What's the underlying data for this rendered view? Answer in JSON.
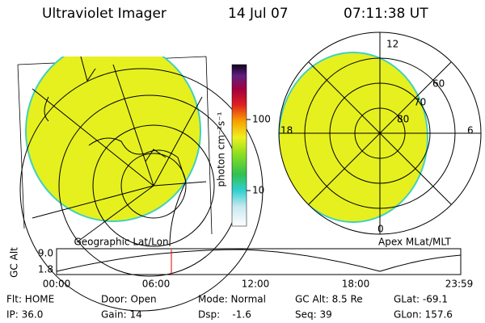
{
  "header": {
    "title": "Ultraviolet Imager",
    "date": "14 Jul 07",
    "time": "07:11:38 UT"
  },
  "colorbar": {
    "label": "photon cm⁻²s⁻¹",
    "ticks": [
      "100",
      "10"
    ]
  },
  "left_panel": {
    "label": "Geographic Lat/Lon"
  },
  "right_panel": {
    "label": "Apex MLat/MLT",
    "mlt_labels": [
      "12",
      "18",
      "6",
      "0"
    ],
    "lat_labels": [
      "60",
      "70",
      "80"
    ]
  },
  "timeline": {
    "axis_label": "GC Alt",
    "y_labels": [
      "9.0",
      "1.8"
    ],
    "x_labels": [
      "00:00",
      "06:00",
      "12:00",
      "18:00",
      "23:59"
    ]
  },
  "status": {
    "rows": [
      [
        "Flt: HOME",
        "Door: Open",
        "Mode: Normal",
        "GC Alt: 8.5 Re",
        "GLat: -69.1"
      ],
      [
        "IP: 36.0",
        "Gain: 14",
        "Dsp:    -1.6",
        "Seq: 39",
        "GLon: 157.6"
      ]
    ]
  }
}
